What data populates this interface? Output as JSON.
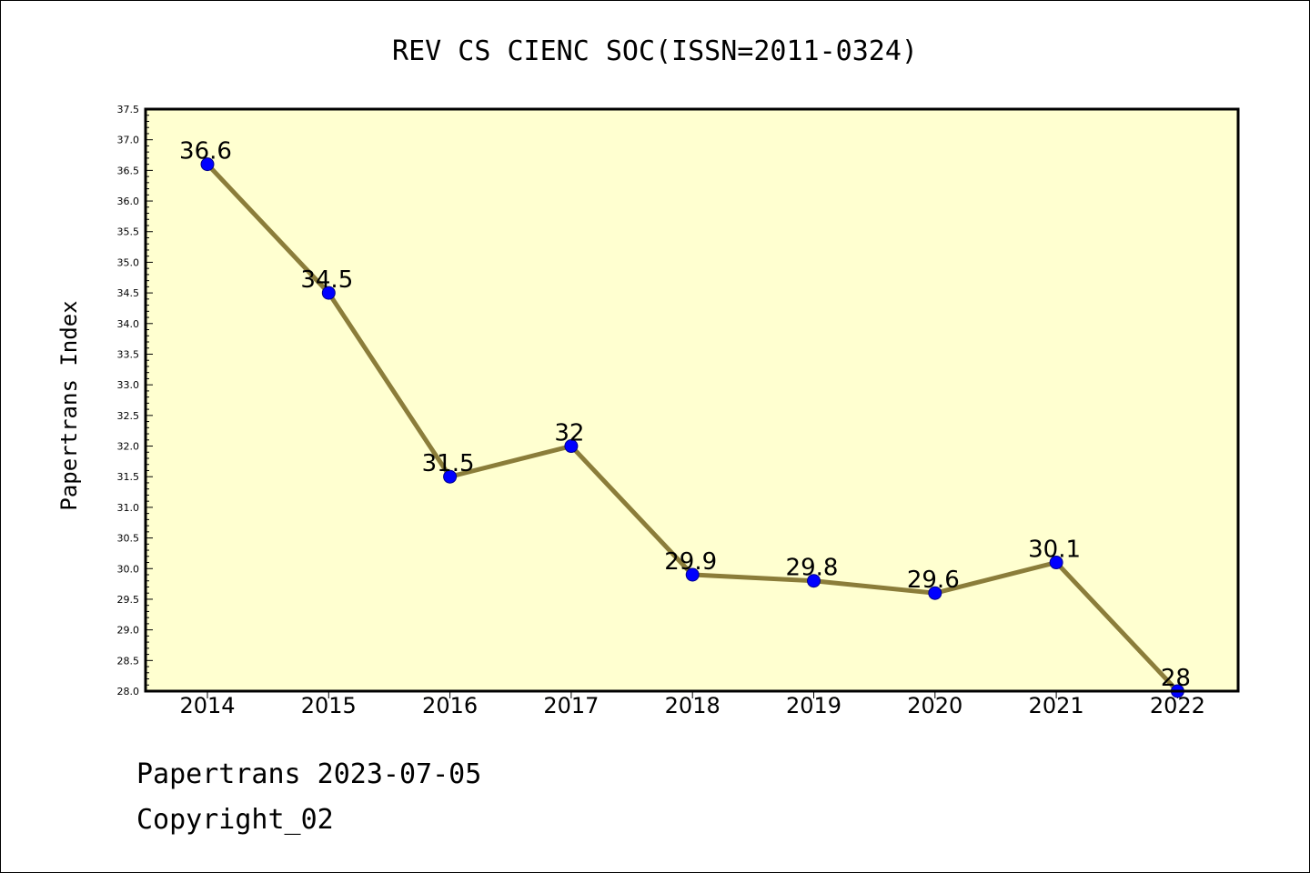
{
  "chart_data": {
    "type": "line",
    "title": "REV CS CIENC SOC(ISSN=2011-0324)",
    "xlabel": "",
    "ylabel": "Papertrans Index",
    "categories": [
      "2014",
      "2015",
      "2016",
      "2017",
      "2018",
      "2019",
      "2020",
      "2021",
      "2022"
    ],
    "series": [
      {
        "values": [
          36.6,
          34.5,
          31.5,
          32,
          29.9,
          29.8,
          29.6,
          30.1,
          28
        ]
      }
    ],
    "data_labels": [
      "36.6",
      "34.5",
      "31.5",
      "32",
      "29.9",
      "29.8",
      "29.6",
      "30.1",
      "28"
    ],
    "ylim": [
      28.0,
      37.5
    ],
    "yticks": [
      "28.0",
      "28.5",
      "29.0",
      "29.5",
      "30.0",
      "30.5",
      "31.0",
      "31.5",
      "32.0",
      "32.5",
      "33.0",
      "33.5",
      "34.0",
      "34.5",
      "35.0",
      "35.5",
      "36.0",
      "36.5",
      "37.0",
      "37.5"
    ],
    "grid": false,
    "colors": {
      "plot_background": "#ffffd0",
      "line": "#8b7d3a",
      "marker": "#0000ff"
    }
  },
  "footer": {
    "line1": "Papertrans 2023-07-05",
    "line2": "Copyright_02"
  }
}
